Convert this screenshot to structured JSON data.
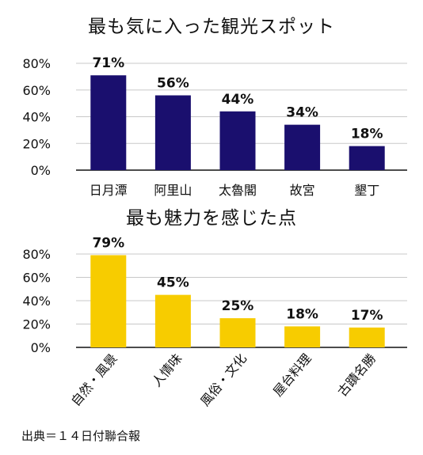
{
  "source": "出典＝１４日付聯合報",
  "chart_data": [
    {
      "type": "bar",
      "title": "最も気に入った観光スポット",
      "categories": [
        "日月潭",
        "阿里山",
        "太魯閣",
        "故宮",
        "墾丁"
      ],
      "values": [
        71,
        56,
        44,
        34,
        18
      ],
      "value_labels": [
        "71%",
        "56%",
        "44%",
        "34%",
        "18%"
      ],
      "yticks": [
        "0%",
        "20%",
        "40%",
        "60%",
        "80%"
      ],
      "ylim": [
        0,
        80
      ],
      "grid": true,
      "bar_color": "#1a0f6e"
    },
    {
      "type": "bar",
      "title": "最も魅力を感じた点",
      "categories": [
        "自然・風景",
        "人情味",
        "風俗・文化",
        "屋台料理",
        "古蹟名勝"
      ],
      "values": [
        79,
        45,
        25,
        18,
        17
      ],
      "value_labels": [
        "79%",
        "45%",
        "25%",
        "18%",
        "17%"
      ],
      "yticks": [
        "0%",
        "20%",
        "40%",
        "60%",
        "80%"
      ],
      "ylim": [
        0,
        80
      ],
      "grid": true,
      "bar_color": "#f7cc00"
    }
  ]
}
